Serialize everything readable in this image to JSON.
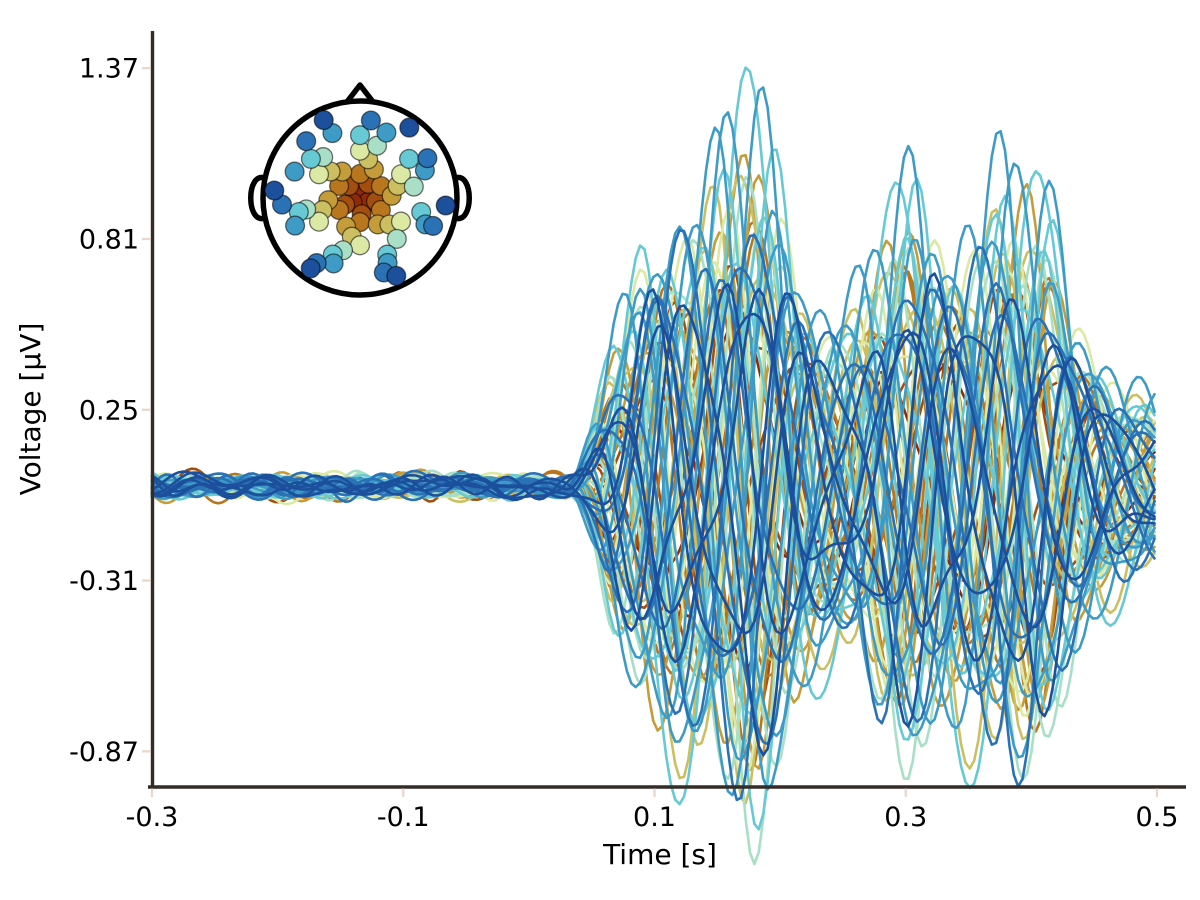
{
  "figure": {
    "kind": "evoked-butterfly-eeg",
    "background_color": "#ffffff",
    "spine_color": "#332C27",
    "tickmark_color": "#EBD8CC"
  },
  "chart_data": {
    "type": "line",
    "title": "",
    "xlabel": "Time [s]",
    "ylabel": "Voltage [µV]",
    "x_ticks": [
      -0.3,
      -0.1,
      0.1,
      0.3,
      0.5
    ],
    "x_tick_labels": [
      "-0.3",
      "-0.1",
      "0.1",
      "0.3",
      "0.5"
    ],
    "y_ticks": [
      1.37,
      0.81,
      0.25,
      -0.31,
      -0.87
    ],
    "y_tick_labels": [
      "1.37",
      "0.81",
      "0.25",
      "-0.31",
      "-0.87"
    ],
    "xlim": [
      -0.3,
      0.523
    ],
    "ylim": [
      -0.99,
      1.49
    ],
    "time_range_s": [
      -0.3,
      0.5
    ],
    "grid": false,
    "legend": "none (spatial colors, see head inset)",
    "n_channels": 66,
    "signal_model": {
      "onset_s": 0.048,
      "ramp_s": 0.044,
      "floor": 0.32,
      "carrier_hz": 8.6,
      "carrier_jitter_hz": 0.7,
      "harmonic_ratio": 2.05,
      "harmonic_weight": 0.2,
      "bursts": [
        {
          "t": 0.1,
          "w": 0.035,
          "a": 0.55
        },
        {
          "t": 0.175,
          "w": 0.05,
          "a": 1.05
        },
        {
          "t": 0.302,
          "w": 0.045,
          "a": 0.75
        },
        {
          "t": 0.392,
          "w": 0.048,
          "a": 0.85
        }
      ],
      "noise_amp_range": [
        0.026,
        0.048
      ],
      "sample_step_s": 0.0035,
      "peak_voltage_uv": 1.37,
      "trough_voltage_uv": -0.87
    },
    "rings": [
      {
        "color": "#8F2A08",
        "radius_frac": 0.1
      },
      {
        "color": "#A34E0F",
        "radius_frac": 0.19
      },
      {
        "color": "#B8761F",
        "radius_frac": 0.28
      },
      {
        "color": "#C59C3A",
        "radius_frac": 0.37
      },
      {
        "color": "#CCBF62",
        "radius_frac": 0.46
      },
      {
        "color": "#DCE9A4",
        "radius_frac": 0.55
      },
      {
        "color": "#A8DFC6",
        "radius_frac": 0.64
      },
      {
        "color": "#66C9D4",
        "radius_frac": 0.73
      },
      {
        "color": "#3D9BC6",
        "radius_frac": 0.82
      },
      {
        "color": "#2A72B5",
        "radius_frac": 0.91
      },
      {
        "color": "#1C4F9C",
        "radius_frac": 1.0
      }
    ],
    "ring_start_angles_deg": [
      0,
      30,
      0,
      26,
      12,
      0,
      18,
      0,
      22,
      8,
      35
    ],
    "series": [
      {
        "r": 0,
        "a": 0.34,
        "p": 1.9
      },
      {
        "r": 0,
        "a": 0.42,
        "p": 4.6
      },
      {
        "r": 0,
        "a": 0.38,
        "p": 0.7
      },
      {
        "r": 1,
        "a": 0.38,
        "p": 5.5
      },
      {
        "r": 1,
        "a": 0.45,
        "p": 2.3
      },
      {
        "r": 1,
        "a": 0.52,
        "p": 3.9
      },
      {
        "r": 1,
        "a": 0.42,
        "p": 0.4
      },
      {
        "r": 1,
        "a": 0.48,
        "p": 1.6
      },
      {
        "r": 2,
        "a": 0.46,
        "p": 2.9
      },
      {
        "r": 2,
        "a": 0.56,
        "p": 0.9
      },
      {
        "r": 2,
        "a": 0.62,
        "p": 4.2
      },
      {
        "r": 2,
        "a": 0.5,
        "p": 5.8
      },
      {
        "r": 2,
        "a": 0.58,
        "p": 1.2
      },
      {
        "r": 2,
        "a": 0.48,
        "p": 3.3
      },
      {
        "r": 3,
        "a": 0.55,
        "p": 5.4
      },
      {
        "r": 3,
        "a": 0.66,
        "p": 0.6
      },
      {
        "r": 3,
        "a": 0.58,
        "p": 3.6
      },
      {
        "r": 3,
        "a": 0.74,
        "p": 1.4
      },
      {
        "r": 3,
        "a": 0.62,
        "p": 2.2
      },
      {
        "r": 3,
        "a": 0.52,
        "p": 4.8
      },
      {
        "r": 4,
        "a": 0.8,
        "p": 1.0,
        "fj": 0
      },
      {
        "r": 4,
        "a": 0.62,
        "p": 4.0
      },
      {
        "r": 4,
        "a": 0.7,
        "p": 2.6
      },
      {
        "r": 4,
        "a": 0.55,
        "p": 5.1
      },
      {
        "r": 4,
        "a": 0.66,
        "p": 0.2
      },
      {
        "r": 4,
        "a": 0.58,
        "p": 3.1
      },
      {
        "r": 5,
        "a": 0.55,
        "p": 2.6
      },
      {
        "r": 5,
        "a": 0.65,
        "p": 5.9
      },
      {
        "r": 5,
        "a": 0.48,
        "p": 0.8
      },
      {
        "r": 5,
        "a": 0.7,
        "p": 3.9
      },
      {
        "r": 5,
        "a": 0.52,
        "p": 4.4
      },
      {
        "r": 5,
        "a": 0.6,
        "p": 1.8
      },
      {
        "r": 6,
        "a": 0.62,
        "p": 1.0
      },
      {
        "r": 6,
        "a": 0.75,
        "p": 4.0
      },
      {
        "r": 6,
        "a": 0.55,
        "p": 2.4
      },
      {
        "r": 6,
        "a": 0.68,
        "p": 5.6
      },
      {
        "r": 6,
        "a": 0.58,
        "p": 0.3
      },
      {
        "r": 6,
        "a": 0.72,
        "p": 3.0
      },
      {
        "r": 7,
        "a": 1.0,
        "p": 0.99,
        "h": 0.05,
        "fj": 0
      },
      {
        "r": 7,
        "a": 0.7,
        "p": 2.0
      },
      {
        "r": 7,
        "a": 0.6,
        "p": 4.5
      },
      {
        "r": 7,
        "a": 0.78,
        "p": 5.9
      },
      {
        "r": 7,
        "a": 0.55,
        "p": 1.2
      },
      {
        "r": 7,
        "a": 0.73,
        "p": 3.5
      },
      {
        "r": 7,
        "a": 0.64,
        "p": 0.2
      },
      {
        "r": 8,
        "a": 0.74,
        "p": 4.97,
        "h": 0.06,
        "fj": 0
      },
      {
        "r": 8,
        "a": 0.85,
        "p": 0.52,
        "fj": 0
      },
      {
        "r": 8,
        "a": 0.82,
        "p": 1.83,
        "fj": 0
      },
      {
        "r": 8,
        "a": 0.7,
        "p": 3.2
      },
      {
        "r": 8,
        "a": 0.62,
        "p": 5.7
      },
      {
        "r": 8,
        "a": 0.86,
        "p": 2.6
      },
      {
        "r": 8,
        "a": 0.66,
        "p": 0.1
      },
      {
        "r": 8,
        "a": 0.72,
        "p": 4.1
      },
      {
        "r": 9,
        "a": 0.6,
        "p": 1.3
      },
      {
        "r": 9,
        "a": 0.7,
        "p": 3.8
      },
      {
        "r": 9,
        "a": 0.52,
        "p": 5.2
      },
      {
        "r": 9,
        "a": 0.65,
        "p": 0.6
      },
      {
        "r": 9,
        "a": 0.55,
        "p": 2.9
      },
      {
        "r": 9,
        "a": 0.68,
        "p": 4.6
      },
      {
        "r": 9,
        "a": 0.48,
        "p": 1.9
      },
      {
        "r": 10,
        "a": 0.45,
        "p": 2.2
      },
      {
        "r": 10,
        "a": 0.55,
        "p": 5.3
      },
      {
        "r": 10,
        "a": 0.38,
        "p": 0.9
      },
      {
        "r": 10,
        "a": 0.6,
        "p": 3.4
      },
      {
        "r": 10,
        "a": 0.42,
        "p": 4.8
      },
      {
        "r": 10,
        "a": 0.5,
        "p": 1.1
      }
    ]
  },
  "inset": {
    "kind": "head-topomap-sensor-layout",
    "outline_color": "#000000",
    "features": [
      "nose",
      "left-ear",
      "right-ear"
    ],
    "dot_colors_meaning": "sensor distance from head center (dark red = center, dark blue = edge)"
  }
}
